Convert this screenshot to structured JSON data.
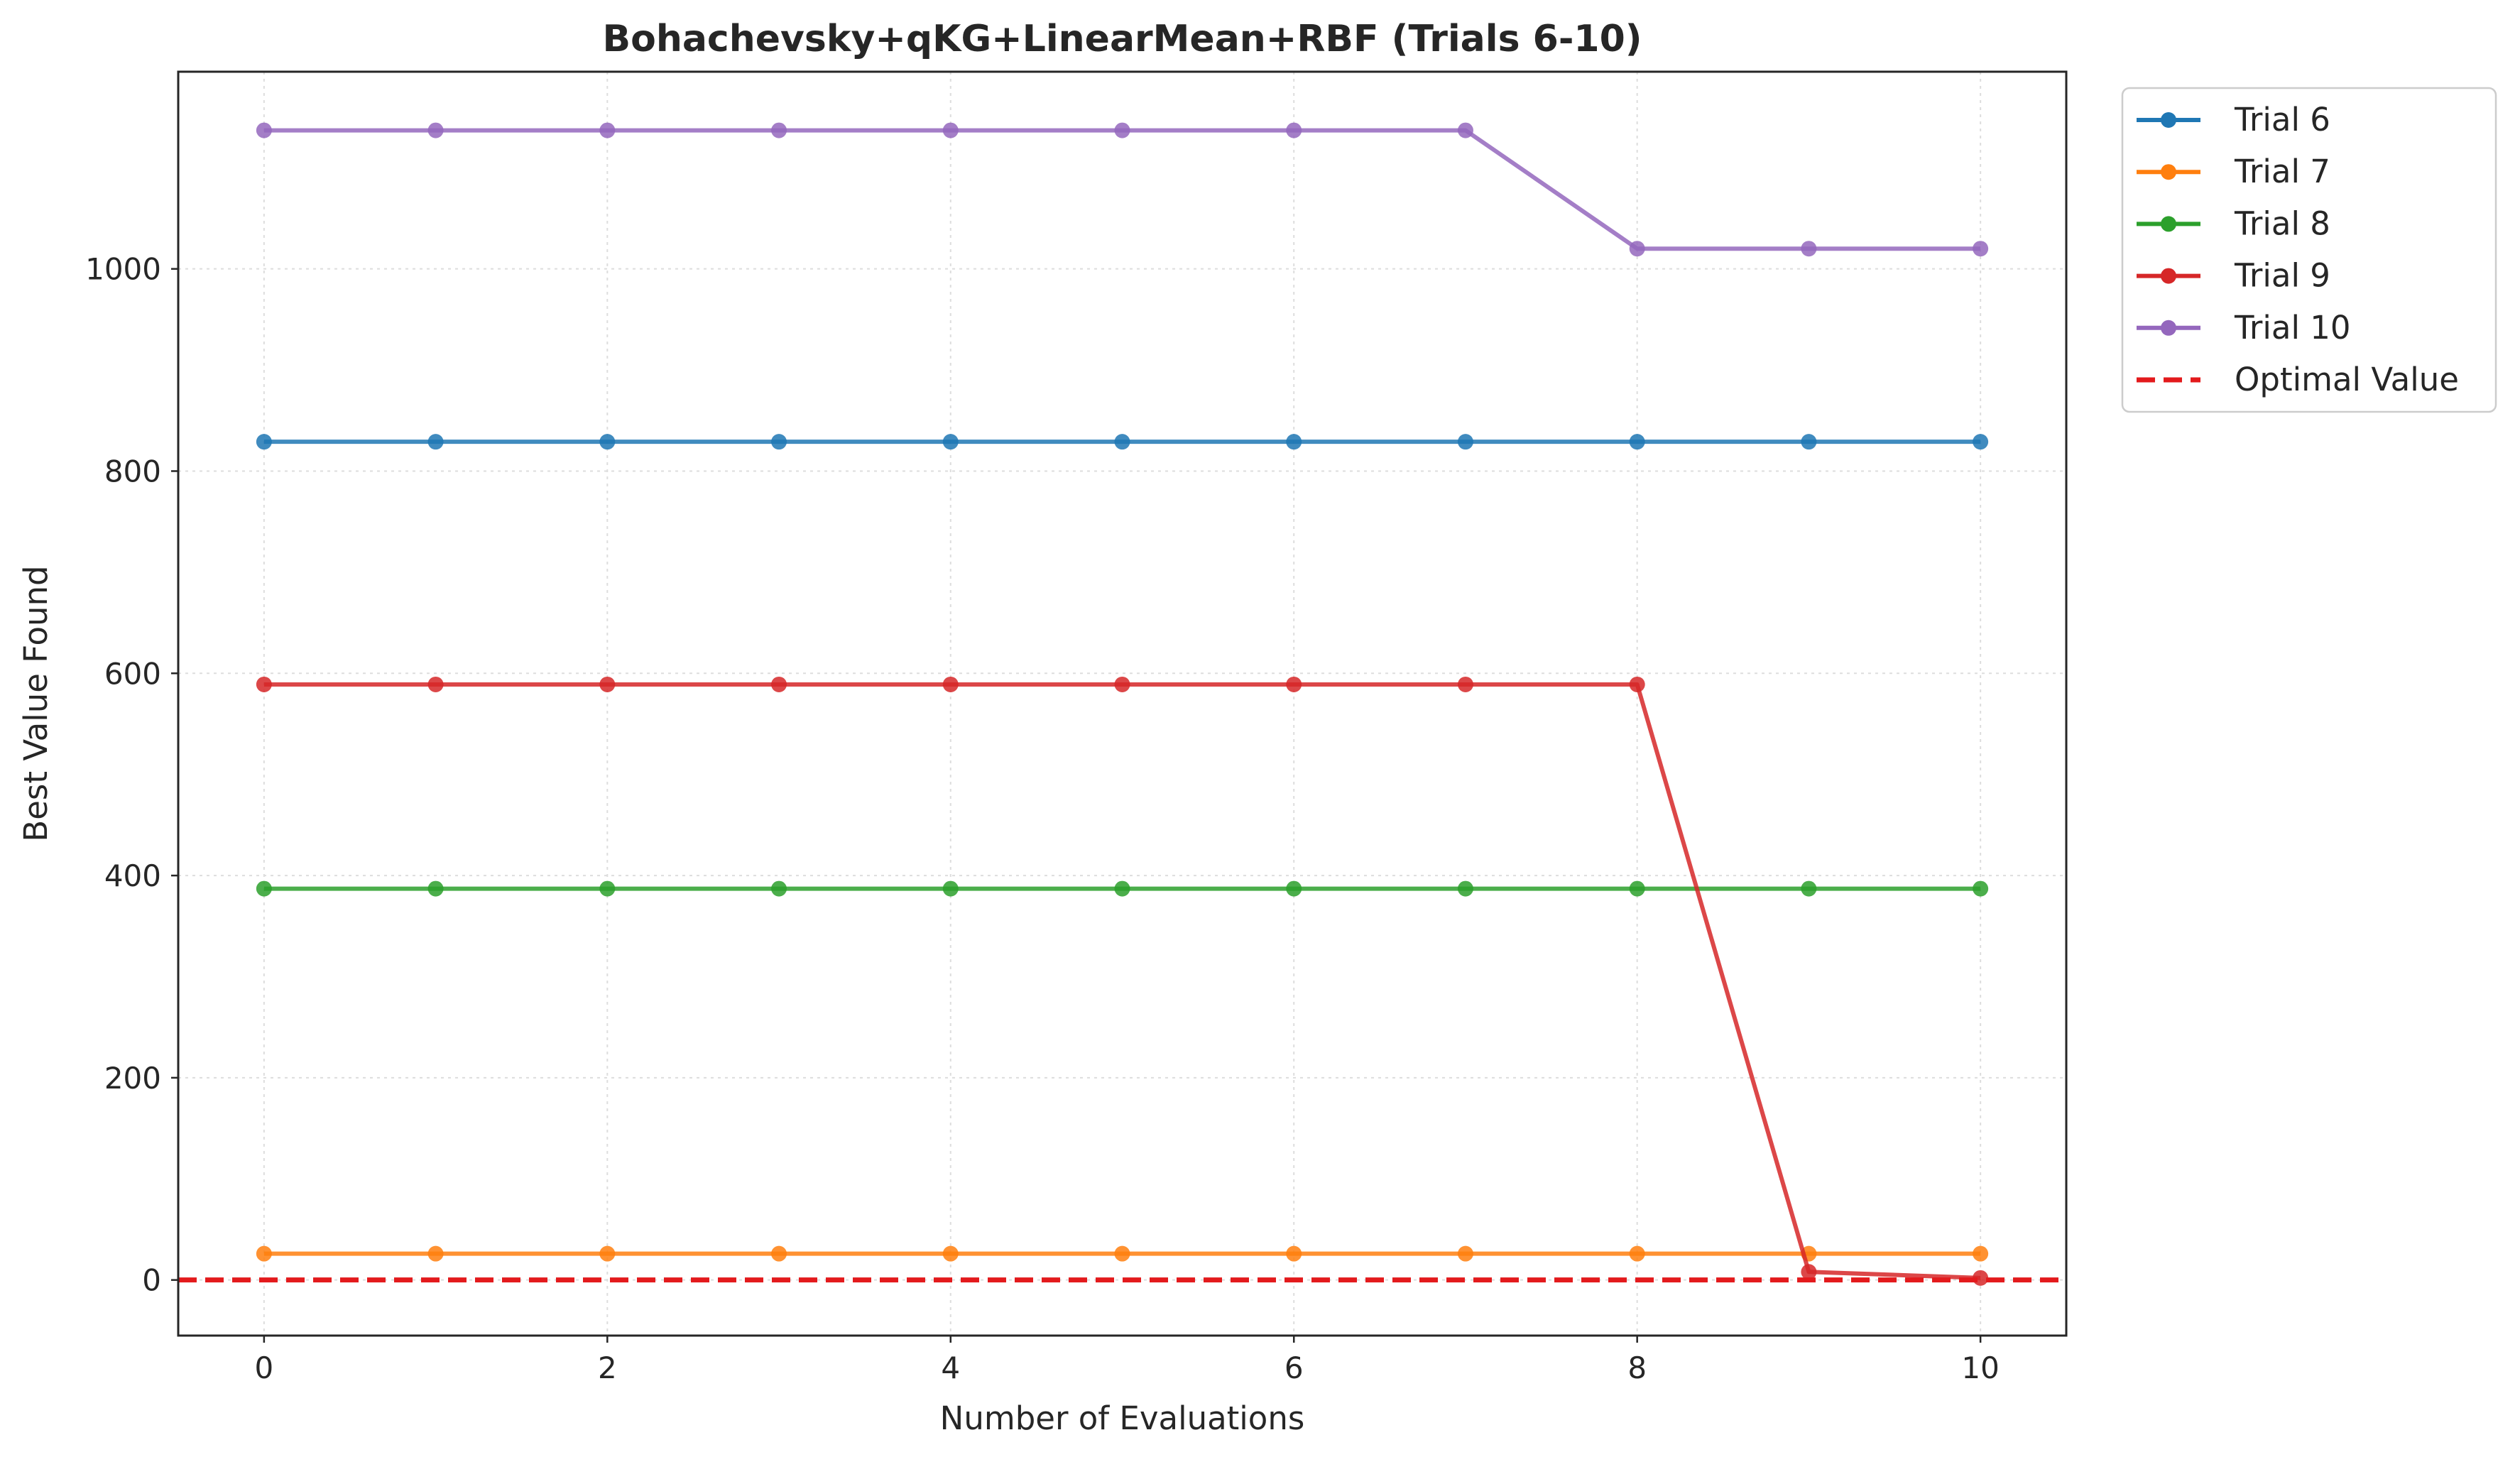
{
  "chart_data": {
    "type": "line",
    "title": "Bohachevsky+qKG+LinearMean+RBF (Trials 6-10)",
    "xlabel": "Number of Evaluations",
    "ylabel": "Best Value Found",
    "xlim": [
      -0.5,
      10.5
    ],
    "ylim": [
      -55,
      1195
    ],
    "xticks": [
      0,
      2,
      4,
      6,
      8,
      10
    ],
    "yticks": [
      0,
      200,
      400,
      600,
      800,
      1000
    ],
    "grid": true,
    "legend_position": "outside-top-right",
    "x": [
      0,
      1,
      2,
      3,
      4,
      5,
      6,
      7,
      8,
      9,
      10
    ],
    "series": [
      {
        "name": "Trial 6",
        "color": "#1f77b4",
        "values": [
          829,
          829,
          829,
          829,
          829,
          829,
          829,
          829,
          829,
          829,
          829
        ]
      },
      {
        "name": "Trial 7",
        "color": "#ff7f0e",
        "values": [
          26,
          26,
          26,
          26,
          26,
          26,
          26,
          26,
          26,
          26,
          26
        ]
      },
      {
        "name": "Trial 8",
        "color": "#2ca02c",
        "values": [
          387,
          387,
          387,
          387,
          387,
          387,
          387,
          387,
          387,
          387,
          387
        ]
      },
      {
        "name": "Trial 9",
        "color": "#d62728",
        "values": [
          589,
          589,
          589,
          589,
          589,
          589,
          589,
          589,
          589,
          8,
          2
        ]
      },
      {
        "name": "Trial 10",
        "color": "#9467bd",
        "values": [
          1137,
          1137,
          1137,
          1137,
          1137,
          1137,
          1137,
          1137,
          1020,
          1020,
          1020
        ]
      }
    ],
    "reference_line": {
      "name": "Optimal Value",
      "value": 0,
      "color": "#e31a1c",
      "style": "dashed"
    }
  }
}
